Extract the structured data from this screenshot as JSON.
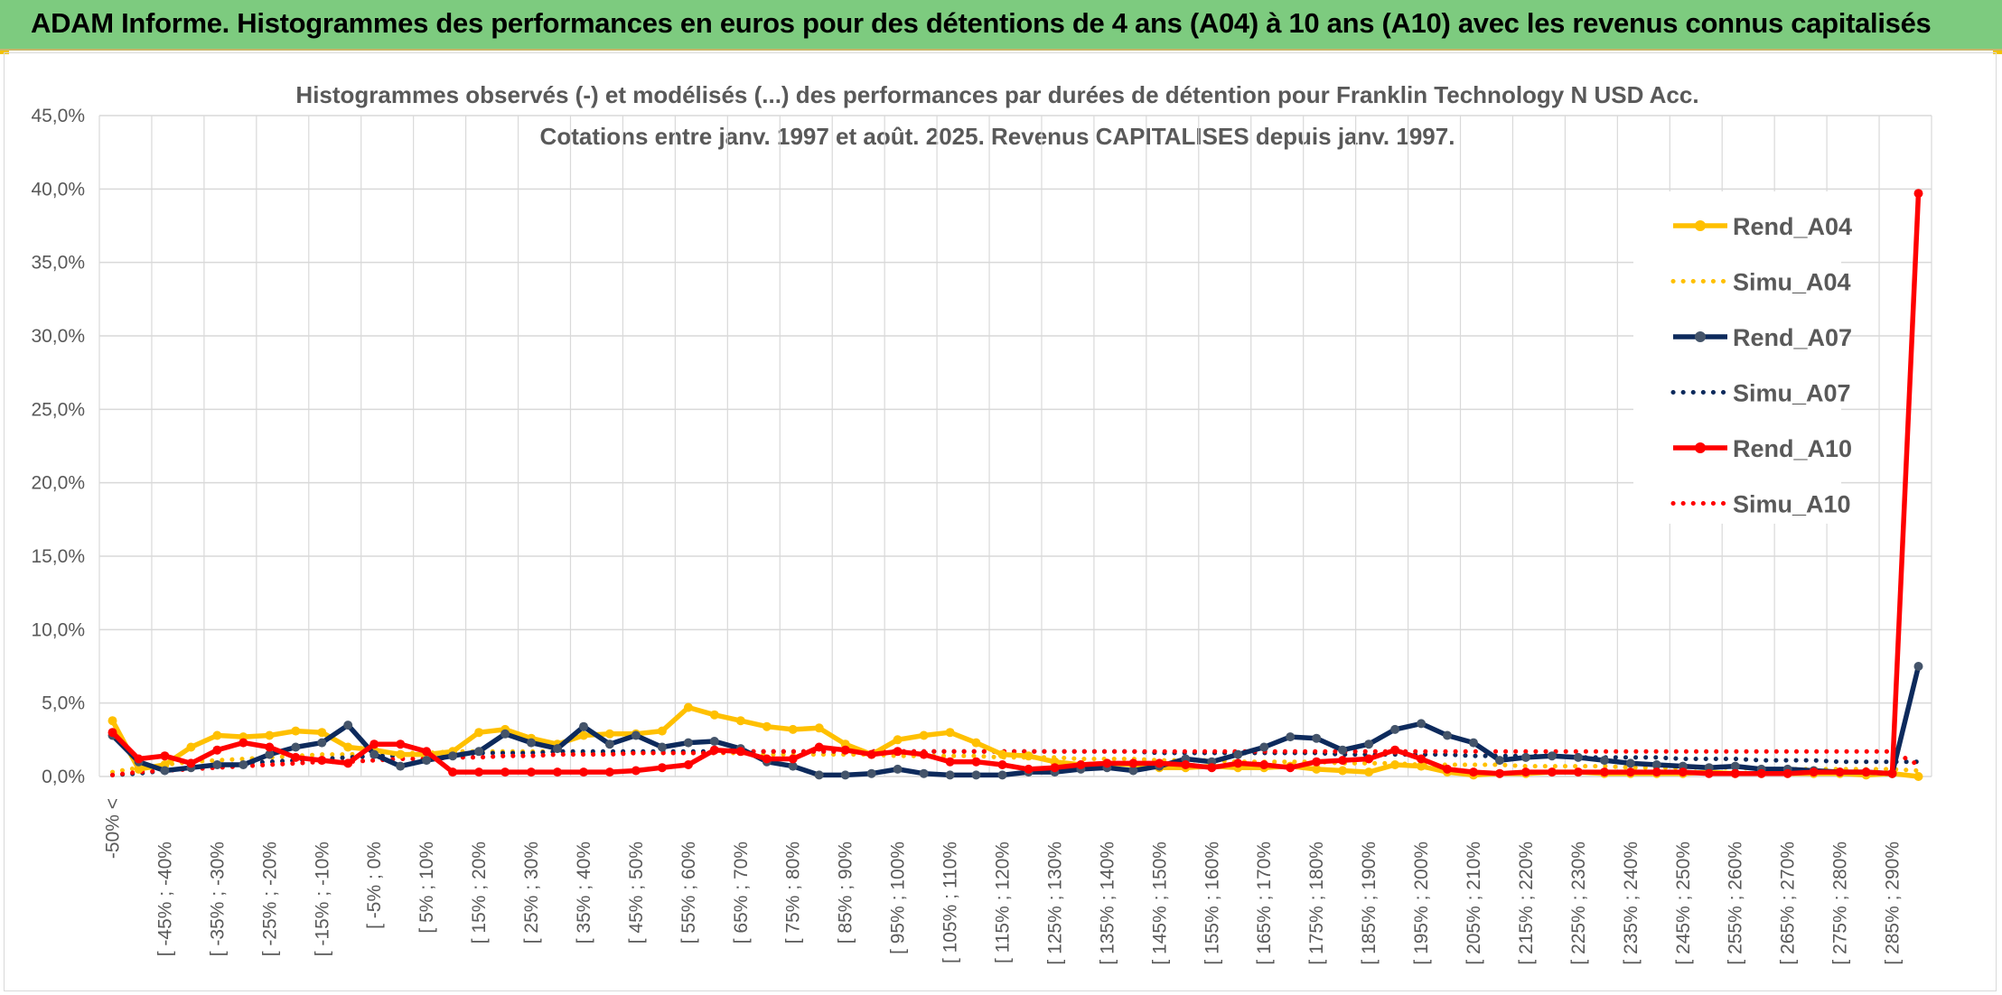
{
  "banner": {
    "title": "ADAM Informe. Histogrammes des performances en euros pour des détentions de 4 ans (A04) à 10 ans (A10) avec les revenus connus capitalisés"
  },
  "colors": {
    "A04": "#ffc000",
    "A07": "#0d2a5c",
    "A10": "#ff0000",
    "banner": "#7dcb7f",
    "grid": "#d9d9d9",
    "text": "#595959"
  },
  "chart_data": {
    "type": "line",
    "title_line1": "Histogrammes observés (-) et modélisés (...) des performances par durées de détention pour Franklin Technology N USD Acc.",
    "title_line2": "Cotations entre janv. 1997 et août. 2025. Revenus CAPITALISES depuis janv. 1997.",
    "xlabel": "",
    "ylabel": "",
    "ylim": [
      0,
      45
    ],
    "y_ticks": [
      "0,0%",
      "5,0%",
      "10,0%",
      "15,0%",
      "20,0%",
      "25,0%",
      "30,0%",
      "35,0%",
      "40,0%",
      "45,0%"
    ],
    "grid": true,
    "legend_position": "right",
    "x_tick_labels": [
      "-50% <",
      "[ -45% ; -40%",
      "[ -35% ; -30%",
      "[ -25% ; -20%",
      "[ -15% ; -10%",
      "[ -5% ; 0%",
      "[ 5% ; 10%",
      "[ 15% ; 20%",
      "[ 25% ; 30%",
      "[ 35% ; 40%",
      "[ 45% ; 50%",
      "[ 55% ; 60%",
      "[ 65% ; 70%",
      "[ 75% ; 80%",
      "[ 85% ; 90%",
      "[ 95% ; 100%",
      "[ 105% ; 110%",
      "[ 115% ; 120%",
      "[ 125% ; 130%",
      "[ 135% ; 140%",
      "[ 145% ; 150%",
      "[ 155% ; 160%",
      "[ 165% ; 170%",
      "[ 175% ; 180%",
      "[ 185% ; 190%",
      "[ 195% ; 200%",
      "[ 205% ; 210%",
      "[ 215% ; 220%",
      "[ 225% ; 230%",
      "[ 235% ; 240%",
      "[ 245% ; 250%",
      "[ 255% ; 260%",
      "[ 265% ; 270%",
      "[ 275% ; 280%",
      "[ 285% ; 290%"
    ],
    "n_points": 70,
    "series": [
      {
        "name": "Rend_A04",
        "key": "A04",
        "style": "solid",
        "values": [
          3.8,
          0.5,
          0.8,
          2.0,
          2.8,
          2.7,
          2.8,
          3.1,
          3.0,
          2.0,
          1.8,
          1.5,
          1.5,
          1.7,
          3.0,
          3.2,
          2.6,
          2.2,
          2.8,
          2.9,
          2.9,
          3.1,
          4.7,
          4.2,
          3.8,
          3.4,
          3.2,
          3.3,
          2.2,
          1.5,
          2.5,
          2.8,
          3.0,
          2.3,
          1.5,
          1.4,
          1.0,
          0.8,
          0.9,
          0.8,
          0.6,
          0.6,
          0.7,
          0.6,
          0.6,
          0.7,
          0.5,
          0.4,
          0.3,
          0.8,
          0.7,
          0.3,
          0.1,
          0.2,
          0.2,
          0.3,
          0.3,
          0.2,
          0.2,
          0.2,
          0.2,
          0.3,
          0.2,
          0.2,
          0.2,
          0.2,
          0.2,
          0.1,
          0.2,
          0.0
        ]
      },
      {
        "name": "Simu_A04",
        "key": "A04",
        "style": "dotted",
        "values": [
          0.3,
          0.6,
          0.8,
          1.0,
          1.1,
          1.2,
          1.3,
          1.4,
          1.5,
          1.5,
          1.6,
          1.6,
          1.6,
          1.7,
          1.7,
          1.7,
          1.7,
          1.7,
          1.6,
          1.6,
          1.6,
          1.6,
          1.6,
          1.6,
          1.6,
          1.5,
          1.5,
          1.5,
          1.5,
          1.5,
          1.4,
          1.4,
          1.4,
          1.4,
          1.3,
          1.3,
          1.3,
          1.2,
          1.2,
          1.2,
          1.1,
          1.1,
          1.1,
          1.0,
          1.0,
          1.0,
          1.0,
          0.9,
          0.9,
          0.9,
          0.8,
          0.8,
          0.8,
          0.8,
          0.7,
          0.7,
          0.7,
          0.7,
          0.6,
          0.6,
          0.6,
          0.6,
          0.6,
          0.5,
          0.5,
          0.5,
          0.5,
          0.5,
          0.5,
          0.4
        ]
      },
      {
        "name": "Rend_A07",
        "key": "A07",
        "style": "solid",
        "values": [
          2.8,
          1.0,
          0.4,
          0.6,
          0.8,
          0.8,
          1.5,
          2.0,
          2.3,
          3.5,
          1.5,
          0.7,
          1.1,
          1.4,
          1.7,
          2.9,
          2.3,
          1.9,
          3.4,
          2.2,
          2.8,
          2.0,
          2.3,
          2.4,
          1.9,
          1.0,
          0.7,
          0.1,
          0.1,
          0.2,
          0.5,
          0.2,
          0.1,
          0.1,
          0.1,
          0.3,
          0.3,
          0.5,
          0.6,
          0.4,
          0.7,
          1.2,
          1.0,
          1.5,
          2.0,
          2.7,
          2.6,
          1.8,
          2.2,
          3.2,
          3.6,
          2.8,
          2.3,
          1.1,
          1.3,
          1.4,
          1.3,
          1.1,
          0.9,
          0.8,
          0.7,
          0.6,
          0.7,
          0.5,
          0.5,
          0.4,
          0.3,
          0.3,
          0.2,
          7.5
        ]
      },
      {
        "name": "Simu_A07",
        "key": "A07",
        "style": "dotted",
        "values": [
          0.1,
          0.2,
          0.4,
          0.6,
          0.7,
          0.9,
          1.0,
          1.1,
          1.2,
          1.3,
          1.4,
          1.4,
          1.5,
          1.5,
          1.6,
          1.6,
          1.6,
          1.7,
          1.7,
          1.7,
          1.7,
          1.7,
          1.7,
          1.7,
          1.7,
          1.7,
          1.7,
          1.7,
          1.7,
          1.7,
          1.7,
          1.7,
          1.7,
          1.7,
          1.7,
          1.7,
          1.7,
          1.7,
          1.7,
          1.7,
          1.6,
          1.6,
          1.6,
          1.6,
          1.6,
          1.6,
          1.6,
          1.5,
          1.5,
          1.5,
          1.5,
          1.5,
          1.4,
          1.4,
          1.4,
          1.4,
          1.3,
          1.3,
          1.3,
          1.3,
          1.2,
          1.2,
          1.2,
          1.1,
          1.1,
          1.1,
          1.0,
          1.0,
          1.0,
          1.0
        ]
      },
      {
        "name": "Rend_A10",
        "key": "A10",
        "style": "solid",
        "values": [
          3.0,
          1.2,
          1.4,
          0.9,
          1.8,
          2.3,
          2.0,
          1.3,
          1.1,
          0.9,
          2.2,
          2.2,
          1.7,
          0.3,
          0.3,
          0.3,
          0.3,
          0.3,
          0.3,
          0.3,
          0.4,
          0.6,
          0.8,
          1.8,
          1.7,
          1.2,
          1.2,
          2.0,
          1.8,
          1.5,
          1.7,
          1.5,
          1.0,
          1.0,
          0.8,
          0.5,
          0.6,
          0.8,
          0.9,
          0.9,
          0.9,
          0.8,
          0.6,
          0.9,
          0.8,
          0.6,
          1.0,
          1.1,
          1.2,
          1.8,
          1.2,
          0.5,
          0.3,
          0.2,
          0.3,
          0.3,
          0.3,
          0.3,
          0.3,
          0.3,
          0.3,
          0.2,
          0.2,
          0.2,
          0.2,
          0.3,
          0.3,
          0.3,
          0.2,
          39.7
        ]
      },
      {
        "name": "Simu_A10",
        "key": "A10",
        "style": "dotted",
        "values": [
          0.1,
          0.3,
          0.4,
          0.5,
          0.6,
          0.7,
          0.8,
          0.9,
          1.0,
          1.0,
          1.1,
          1.2,
          1.2,
          1.3,
          1.3,
          1.4,
          1.4,
          1.5,
          1.5,
          1.5,
          1.6,
          1.6,
          1.6,
          1.6,
          1.7,
          1.7,
          1.7,
          1.7,
          1.7,
          1.7,
          1.7,
          1.7,
          1.7,
          1.7,
          1.7,
          1.7,
          1.7,
          1.7,
          1.7,
          1.7,
          1.7,
          1.7,
          1.7,
          1.7,
          1.7,
          1.7,
          1.7,
          1.7,
          1.7,
          1.7,
          1.7,
          1.7,
          1.7,
          1.7,
          1.7,
          1.7,
          1.7,
          1.7,
          1.7,
          1.7,
          1.7,
          1.7,
          1.7,
          1.7,
          1.7,
          1.7,
          1.7,
          1.7,
          1.7,
          0.8
        ]
      }
    ]
  }
}
